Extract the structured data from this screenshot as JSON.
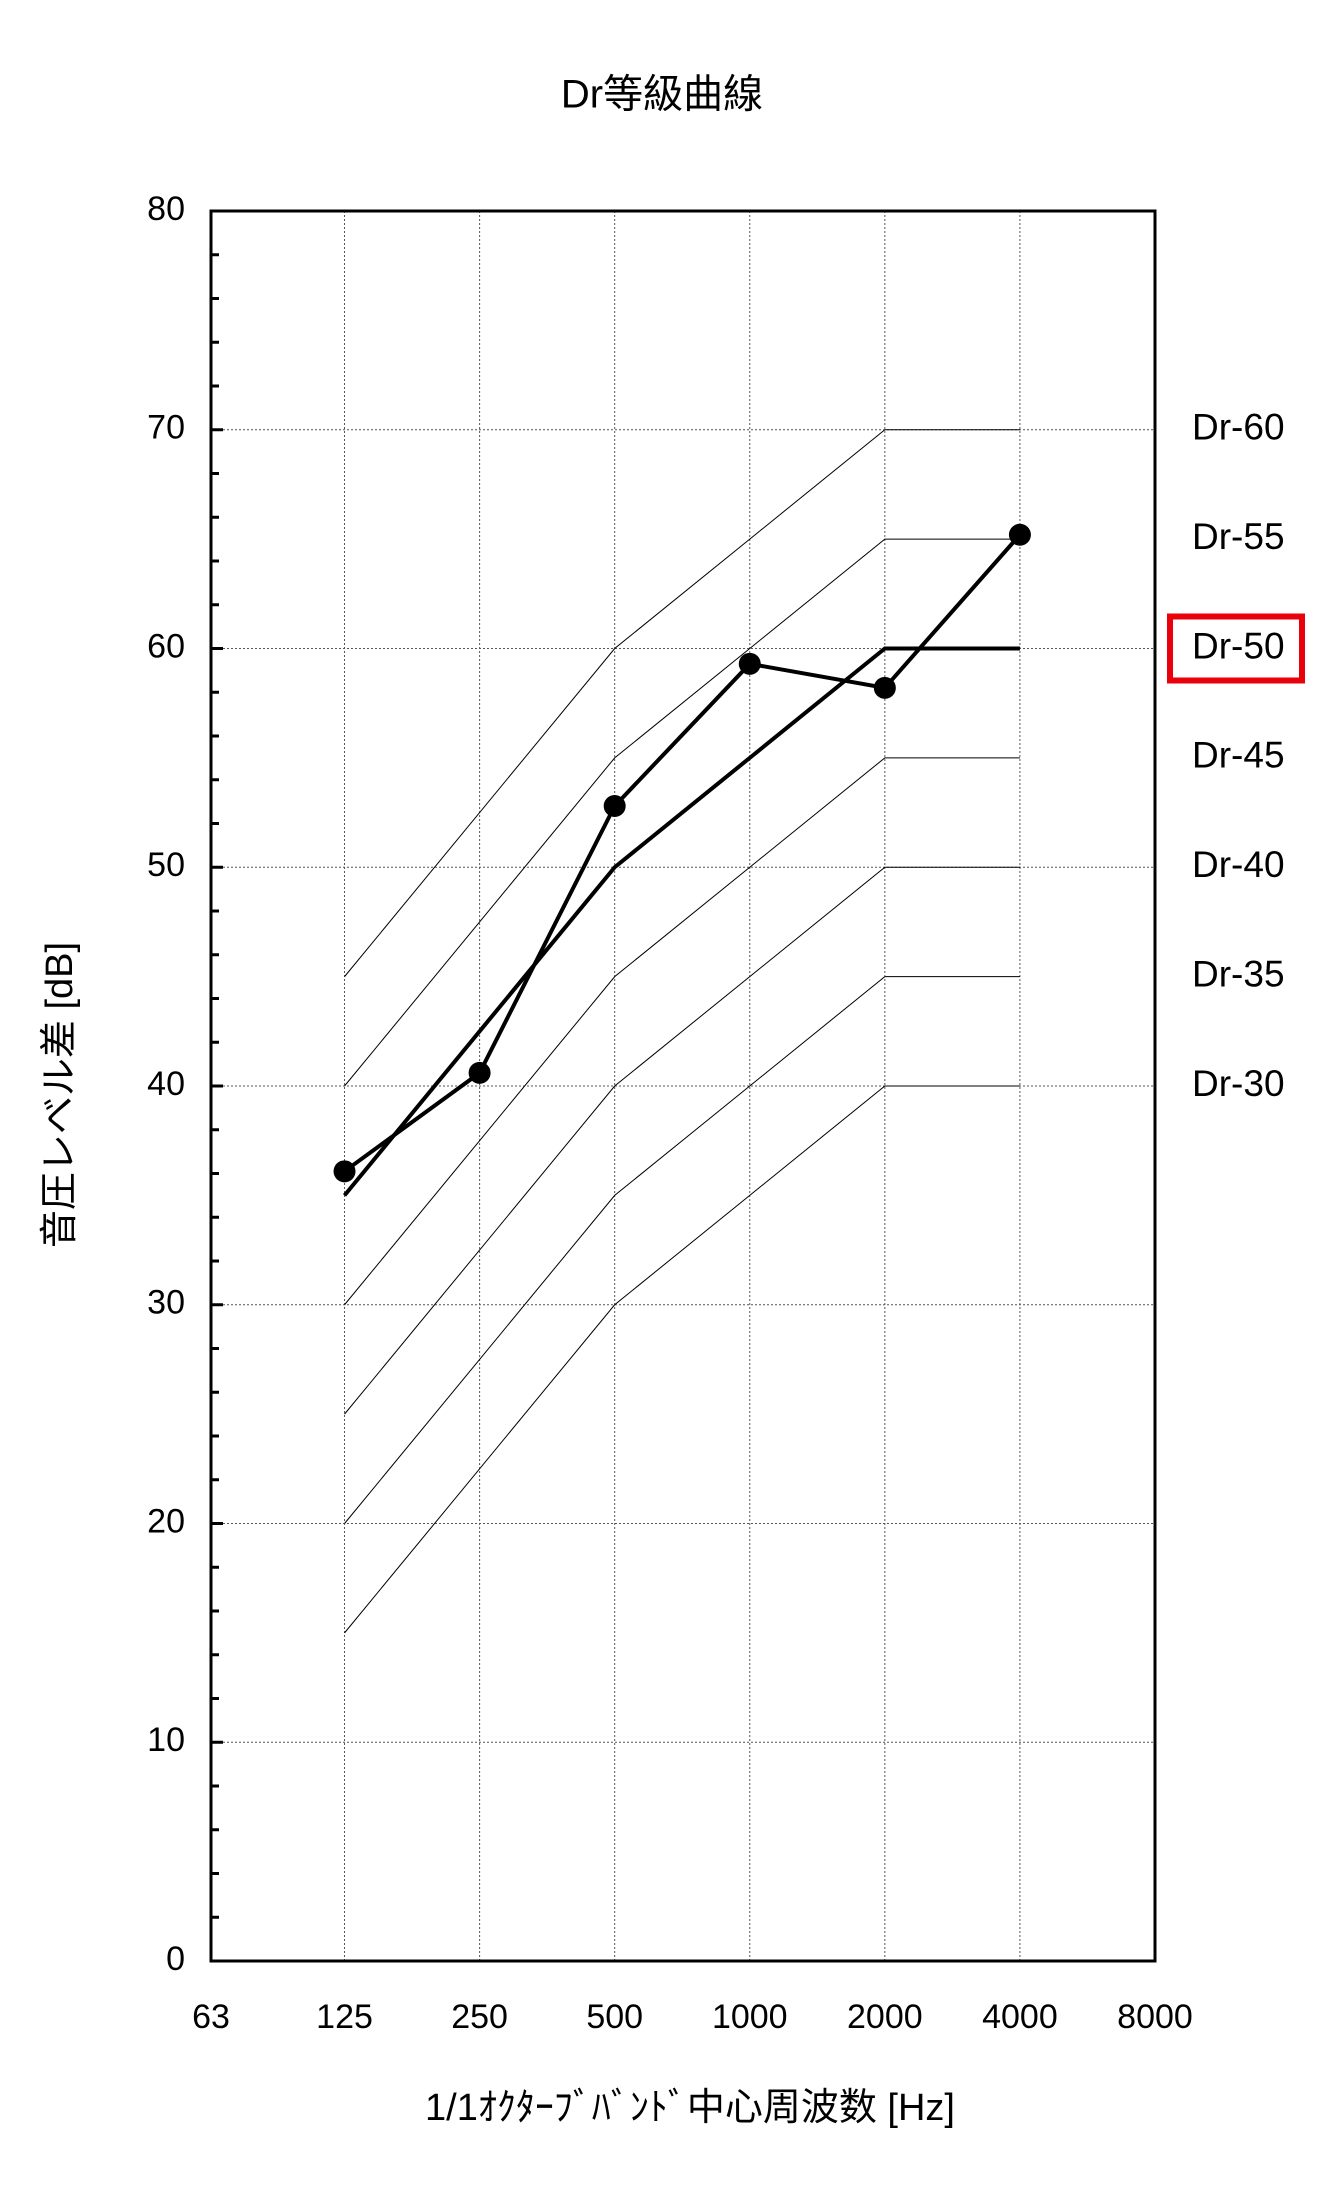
{
  "chart_data": {
    "type": "line",
    "title": "Dr等級曲線",
    "xlabel": "1/1ｵｸﾀｰﾌﾞﾊﾞﾝﾄﾞ中心周波数 [Hz]",
    "ylabel": "音圧レベル差 [dB]",
    "xscale": "log",
    "xlim": [
      63,
      8000
    ],
    "xticks": [
      63,
      125,
      250,
      500,
      1000,
      2000,
      4000,
      8000
    ],
    "ylim": [
      0,
      80
    ],
    "yticks": [
      0,
      10,
      20,
      30,
      40,
      50,
      60,
      70,
      80
    ],
    "yminor": 2,
    "grid": true,
    "series": [
      {
        "name": "Dr-60",
        "color": "#000000",
        "x": [
          125,
          500,
          1000,
          2000,
          4000
        ],
        "values": [
          45,
          60,
          65,
          70,
          70
        ]
      },
      {
        "name": "Dr-55",
        "color": "#000000",
        "x": [
          125,
          500,
          1000,
          2000,
          4000
        ],
        "values": [
          40,
          55,
          60,
          65,
          65
        ]
      },
      {
        "name": "Dr-50",
        "color": "#000000",
        "x": [
          125,
          500,
          1000,
          2000,
          4000
        ],
        "values": [
          35,
          50,
          55,
          60,
          60
        ],
        "highlight": true,
        "highlight_color": "#e8000b"
      },
      {
        "name": "Dr-45",
        "color": "#000000",
        "x": [
          125,
          500,
          1000,
          2000,
          4000
        ],
        "values": [
          30,
          45,
          50,
          55,
          55
        ]
      },
      {
        "name": "Dr-40",
        "color": "#000000",
        "x": [
          125,
          500,
          1000,
          2000,
          4000
        ],
        "values": [
          25,
          40,
          45,
          50,
          50
        ]
      },
      {
        "name": "Dr-35",
        "color": "#000000",
        "x": [
          125,
          500,
          1000,
          2000,
          4000
        ],
        "values": [
          20,
          35,
          40,
          45,
          45
        ]
      },
      {
        "name": "Dr-30",
        "color": "#000000",
        "x": [
          125,
          500,
          1000,
          2000,
          4000
        ],
        "values": [
          15,
          30,
          35,
          40,
          40
        ]
      },
      {
        "color": "#000000",
        "markers": true,
        "x": [
          125,
          250,
          500,
          1000,
          2000,
          4000
        ],
        "values": [
          36.1,
          40.6,
          52.8,
          59.3,
          58.2,
          65.2
        ]
      }
    ]
  }
}
